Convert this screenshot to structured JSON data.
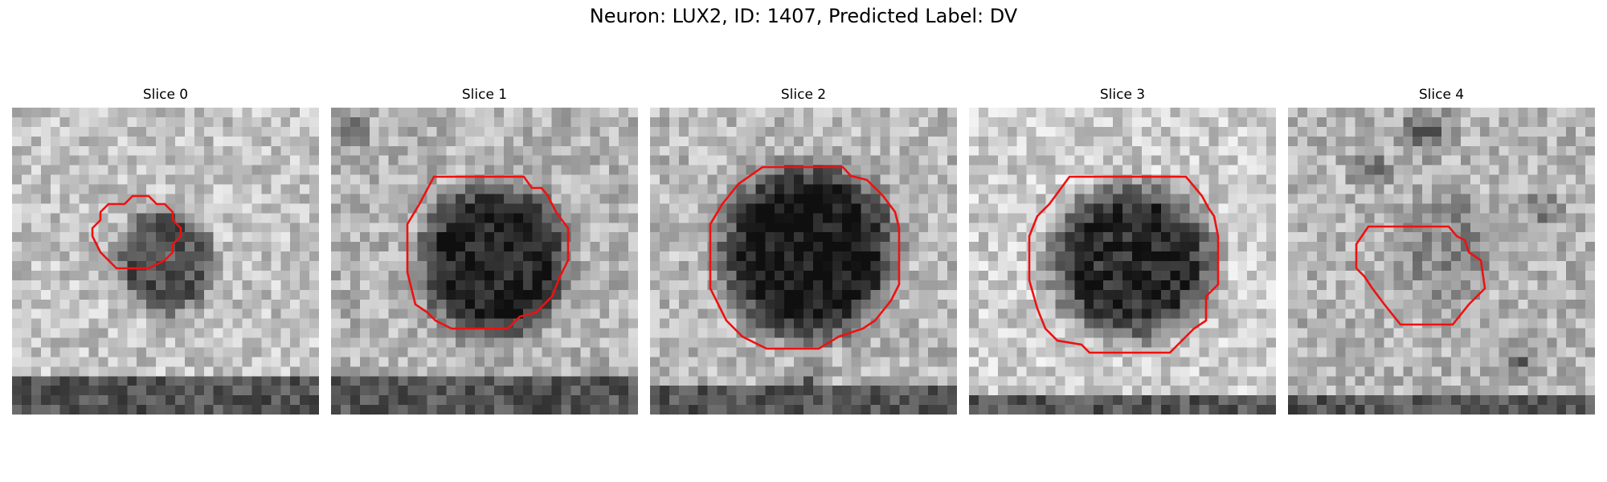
{
  "title": "Neuron: LUX2, ID: 1407, Predicted Label: DV",
  "outline_color": "#ee1111",
  "panels": [
    {
      "label": "Slice 0"
    },
    {
      "label": "Slice 1"
    },
    {
      "label": "Slice 2"
    },
    {
      "label": "Slice 3"
    },
    {
      "label": "Slice 4"
    }
  ]
}
